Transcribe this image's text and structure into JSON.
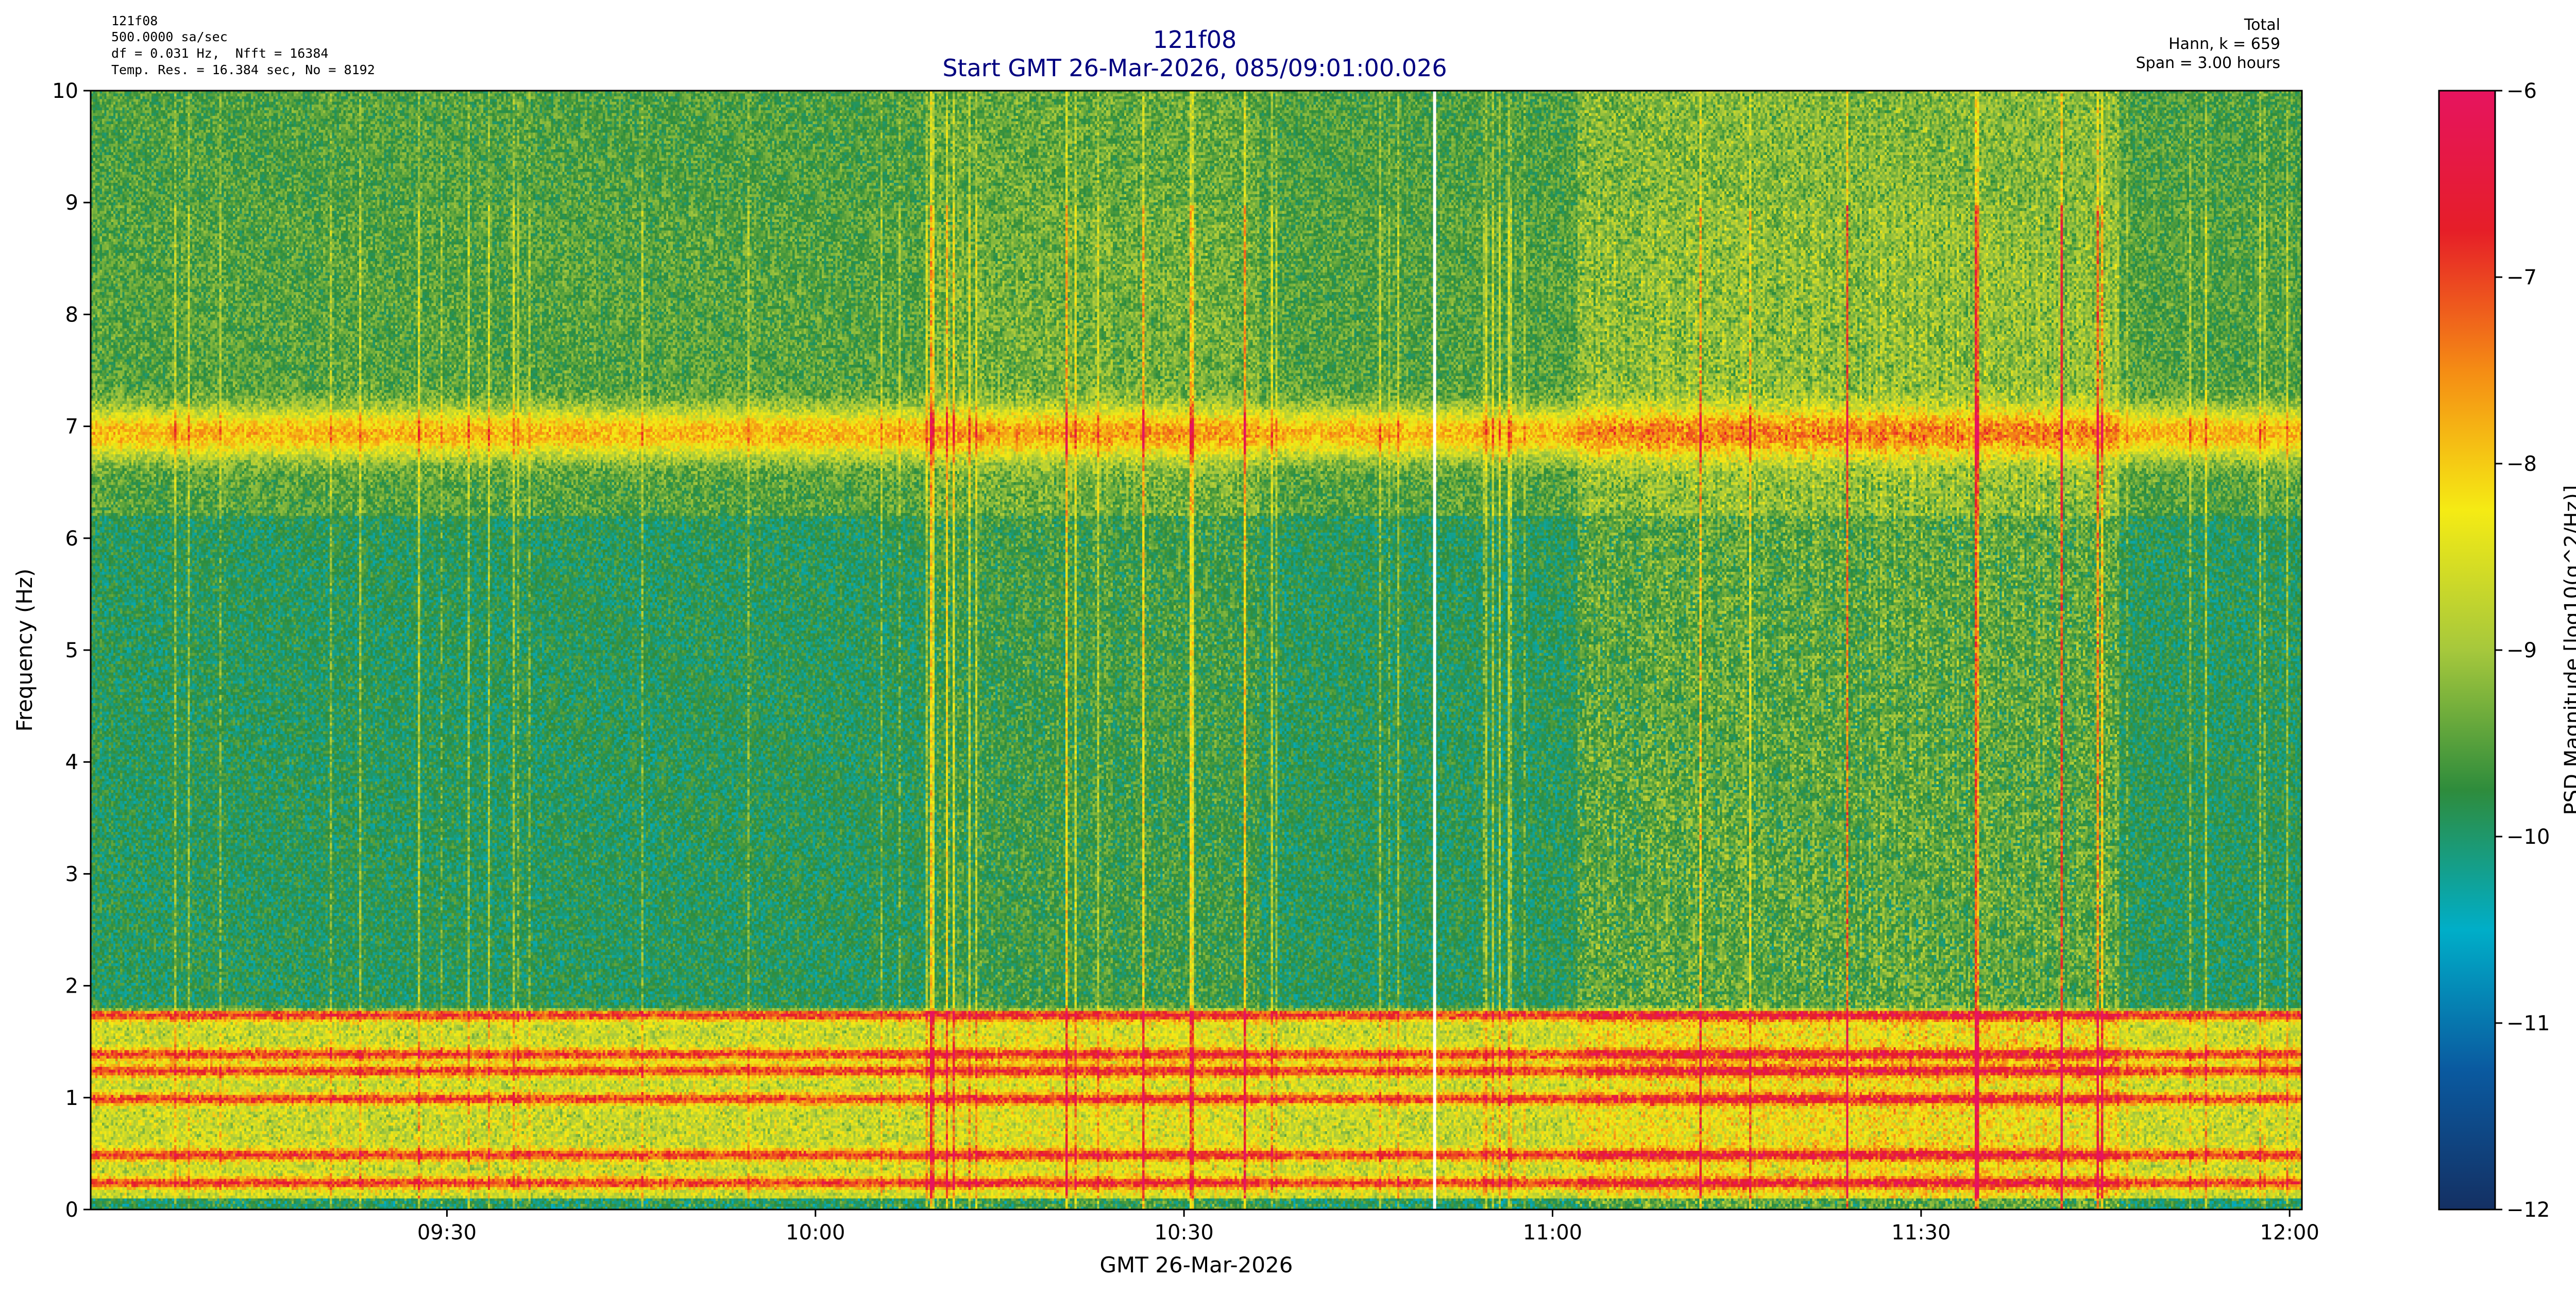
{
  "header": {
    "info_left": [
      "121f08",
      "500.0000 sa/sec",
      "df = 0.031 Hz,  Nfft = 16384",
      "Temp. Res. = 16.384 sec, No = 8192"
    ],
    "title_line1": "121f08",
    "title_line2": "Start GMT 26-Mar-2026, 085/09:01:00.026",
    "info_right": [
      "Total",
      "Hann, k = 659",
      "Span = 3.00 hours"
    ]
  },
  "colors": {
    "title": "#000080",
    "colormap": [
      "#143063",
      "#0a5aa0",
      "#00aec8",
      "#2e8c3c",
      "#a6c83c",
      "#f5eb14",
      "#f58c14",
      "#e61e28",
      "#e6145f"
    ]
  },
  "chart_data": {
    "type": "heatmap",
    "title": "121f08\nStart GMT 26-Mar-2026, 085/09:01:00.026",
    "xlabel": "GMT 26-Mar-2026",
    "ylabel": "Frequency (Hz)",
    "colorbar_label": "PSD Magnitude [log10(g^2/Hz)]",
    "x_range": [
      "09:01",
      "12:01"
    ],
    "xticks": [
      "09:30",
      "10:00",
      "10:30",
      "11:00",
      "11:30",
      "12:00"
    ],
    "xtick_minutes": [
      29,
      59,
      89,
      119,
      149,
      179
    ],
    "ylim": [
      0,
      10
    ],
    "yticks": [
      0,
      1,
      2,
      3,
      4,
      5,
      6,
      7,
      8,
      9,
      10
    ],
    "clim": [
      -12,
      -6
    ],
    "cticks": [
      -6,
      -7,
      -8,
      -9,
      -10,
      -11,
      -12
    ],
    "gap_line_minute": 109.4,
    "features": {
      "lines_hz": [
        0.25,
        0.5,
        1.0,
        1.25,
        1.4,
        1.75
      ],
      "band_hz": 6.95,
      "high_activity_minutes": [
        68,
        95
      ],
      "high_activity_minutes_2": [
        121,
        165
      ]
    }
  }
}
